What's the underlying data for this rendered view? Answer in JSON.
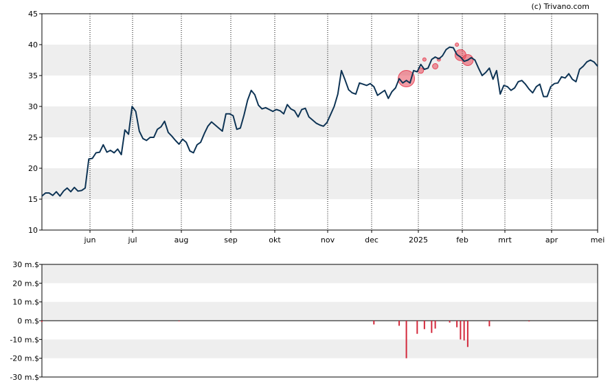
{
  "credit": "(c) Trivano.com",
  "colors": {
    "line": "#0d3354",
    "band": "#eeeeee",
    "bubble": "#e8485a",
    "bar": "#d3273a"
  },
  "chart_data": [
    {
      "type": "line",
      "x_ticks": [
        "jun",
        "jul",
        "aug",
        "sep",
        "okt",
        "nov",
        "dec",
        "2025",
        "feb",
        "mrt",
        "apr",
        "mei"
      ],
      "y_ticks": [
        "10",
        "15",
        "20",
        "25",
        "30",
        "35",
        "40",
        "45"
      ],
      "ylim": [
        10,
        45
      ],
      "series": [
        {
          "values": [
            15.5,
            16,
            16,
            15.6,
            16.2,
            15.5,
            16.3,
            16.8,
            16.2,
            16.9,
            16.3,
            16.4,
            16.8,
            21.5,
            21.6,
            22.5,
            22.6,
            23.8,
            22.6,
            22.9,
            22.5,
            23.1,
            22.2,
            26.2,
            25.5,
            30,
            29.2,
            26,
            24.8,
            24.5,
            25,
            25,
            26.3,
            26.7,
            27.6,
            25.8,
            25.2,
            24.5,
            23.9,
            24.7,
            24.2,
            22.8,
            22.5,
            23.8,
            24.2,
            25.6,
            26.8,
            27.5,
            27,
            26.5,
            26,
            28.8,
            28.8,
            28.5,
            26.3,
            26.5,
            28.6,
            31,
            32.6,
            31.9,
            30.2,
            29.6,
            29.8,
            29.5,
            29.2,
            29.5,
            29.3,
            28.8,
            30.3,
            29.6,
            29.3,
            28.3,
            29.5,
            29.7,
            28.3,
            27.8,
            27.3,
            27,
            26.8,
            27.4,
            28.7,
            30,
            32,
            35.8,
            34.3,
            32.7,
            32.2,
            32,
            33.8,
            33.6,
            33.4,
            33.7,
            33.2,
            31.8,
            32.2,
            32.6,
            31.3,
            32.4,
            33,
            34.5,
            33.8,
            34.2,
            33.8,
            35.8,
            35.6,
            36.8,
            36,
            36.2,
            37.6,
            38,
            37.7,
            38.2,
            39.2,
            39.6,
            39.5,
            38.4,
            38,
            37.3,
            37.5,
            37.9,
            37.5,
            36.2,
            35,
            35.5,
            36.2,
            34.4,
            35.8,
            32,
            33.4,
            33.2,
            32.6,
            33,
            34,
            34.2,
            33.6,
            32.8,
            32.2,
            33.2,
            33.6,
            31.6,
            31.6,
            33.2,
            33.7,
            33.8,
            34.8,
            34.6,
            35.3,
            34.4,
            34,
            36,
            36.5,
            37.2,
            37.5,
            37.2,
            36.5
          ]
        }
      ],
      "bubbles": [
        {
          "date_index": 101,
          "value": 34.5,
          "size": "large"
        },
        {
          "date_index": 105,
          "value": 35.8,
          "size": "small"
        },
        {
          "date_index": 106,
          "value": 37.6,
          "size": "tiny"
        },
        {
          "date_index": 109,
          "value": 36.5,
          "size": "small"
        },
        {
          "date_index": 110,
          "value": 37.6,
          "size": "tiny"
        },
        {
          "date_index": 115,
          "value": 40,
          "size": "tiny"
        },
        {
          "date_index": 116,
          "value": 38.3,
          "size": "medium"
        },
        {
          "date_index": 118,
          "value": 37.5,
          "size": "medium"
        }
      ]
    },
    {
      "type": "bar",
      "y_ticks": [
        "-30 m.$",
        "-20 m.$",
        "-10 m.$",
        "0 m.$",
        "10 m.$",
        "20 m.$",
        "30 m.$"
      ],
      "ylim": [
        -30,
        30
      ],
      "bars": [
        {
          "date_index": 0,
          "value": -0.6
        },
        {
          "date_index": 38,
          "value": -0.3
        },
        {
          "date_index": 92,
          "value": -2
        },
        {
          "date_index": 99,
          "value": -2.7
        },
        {
          "date_index": 101,
          "value": -20
        },
        {
          "date_index": 104,
          "value": -7
        },
        {
          "date_index": 106,
          "value": -4.5
        },
        {
          "date_index": 108,
          "value": -6.5
        },
        {
          "date_index": 109,
          "value": -4.2
        },
        {
          "date_index": 113,
          "value": -1
        },
        {
          "date_index": 115,
          "value": -3.5
        },
        {
          "date_index": 116,
          "value": -10
        },
        {
          "date_index": 117,
          "value": -10.5
        },
        {
          "date_index": 118,
          "value": -14
        },
        {
          "date_index": 124,
          "value": -3
        },
        {
          "date_index": 135,
          "value": -0.4
        }
      ]
    }
  ]
}
